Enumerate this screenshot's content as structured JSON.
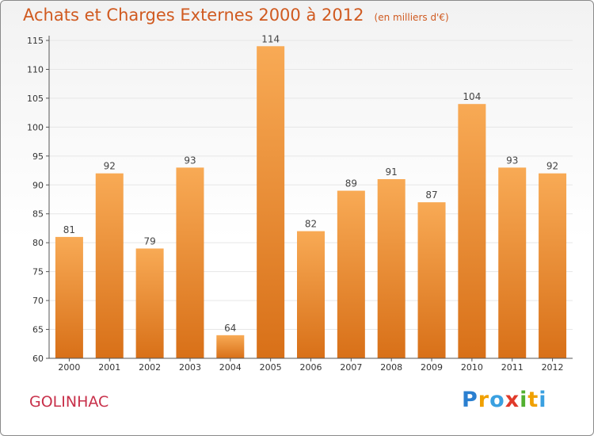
{
  "header": {
    "title": "Achats et Charges Externes 2000 à 2012",
    "unit": "(en milliers d'€)"
  },
  "footer": {
    "commune": "GOLINHAC",
    "logo_letters": [
      "P",
      "r",
      "o",
      "x",
      "i",
      "t",
      "i"
    ],
    "logo_colors": [
      "#2a7fd0",
      "#f0a000",
      "#3aa0e0",
      "#e03a2a",
      "#52b030",
      "#f0a000",
      "#3aa0e0"
    ]
  },
  "colors": {
    "bar": "#f0892a",
    "bar_light": "#f8aa55",
    "bar_dark": "#d87018",
    "grid": "#e6e6e6",
    "axis": "#555555"
  },
  "chart_data": {
    "type": "bar",
    "categories": [
      "2000",
      "2001",
      "2002",
      "2003",
      "2004",
      "2005",
      "2006",
      "2007",
      "2008",
      "2009",
      "2010",
      "2011",
      "2012"
    ],
    "values": [
      81,
      92,
      79,
      93,
      64,
      114,
      82,
      89,
      91,
      87,
      104,
      93,
      92
    ],
    "title": "Achats et Charges Externes 2000 à 2012",
    "xlabel": "",
    "ylabel": "",
    "ylim": [
      60,
      115
    ],
    "yticks": [
      60,
      65,
      70,
      75,
      80,
      85,
      90,
      95,
      100,
      105,
      110,
      115
    ],
    "grid": true,
    "data_labels": true
  }
}
